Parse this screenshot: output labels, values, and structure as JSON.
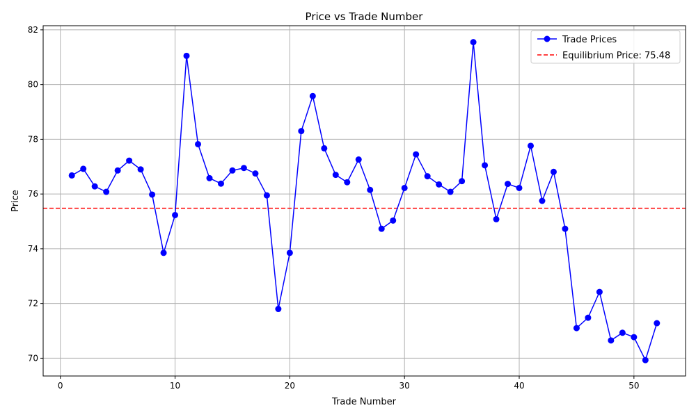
{
  "chart_data": {
    "type": "line",
    "title": "Price vs Trade Number",
    "xlabel": "Trade Number",
    "ylabel": "Price",
    "xlim": [
      -1.5,
      54.5
    ],
    "ylim": [
      69.35,
      82.15
    ],
    "xticks": [
      0,
      10,
      20,
      30,
      40,
      50
    ],
    "yticks": [
      70,
      72,
      74,
      76,
      78,
      80,
      82
    ],
    "grid": true,
    "legend_position": "top-right",
    "series": [
      {
        "name": "Trade Prices",
        "color": "#0000ff",
        "marker": "circle",
        "x": [
          1,
          2,
          3,
          4,
          5,
          6,
          7,
          8,
          9,
          10,
          11,
          12,
          13,
          14,
          15,
          16,
          17,
          18,
          19,
          20,
          21,
          22,
          23,
          24,
          25,
          26,
          27,
          28,
          29,
          30,
          31,
          32,
          33,
          34,
          35,
          36,
          37,
          38,
          39,
          40,
          41,
          42,
          43,
          44,
          45,
          46,
          47,
          48,
          49,
          50,
          51,
          52
        ],
        "y": [
          76.68,
          76.92,
          76.28,
          76.08,
          76.86,
          77.22,
          76.9,
          75.98,
          73.85,
          75.23,
          81.05,
          77.82,
          76.58,
          76.38,
          76.86,
          76.95,
          76.75,
          75.95,
          71.8,
          73.85,
          78.3,
          79.58,
          77.67,
          76.7,
          76.43,
          77.26,
          76.15,
          74.73,
          75.03,
          76.22,
          77.45,
          76.65,
          76.35,
          76.08,
          76.47,
          81.55,
          77.05,
          75.08,
          76.37,
          76.22,
          77.76,
          75.75,
          76.81,
          74.73,
          71.1,
          71.48,
          72.42,
          70.65,
          70.93,
          70.77,
          69.93,
          71.28
        ]
      },
      {
        "name": "Equilibrium Price: 75.48",
        "color": "#ff0000",
        "style": "dashed",
        "value": 75.48
      }
    ]
  }
}
